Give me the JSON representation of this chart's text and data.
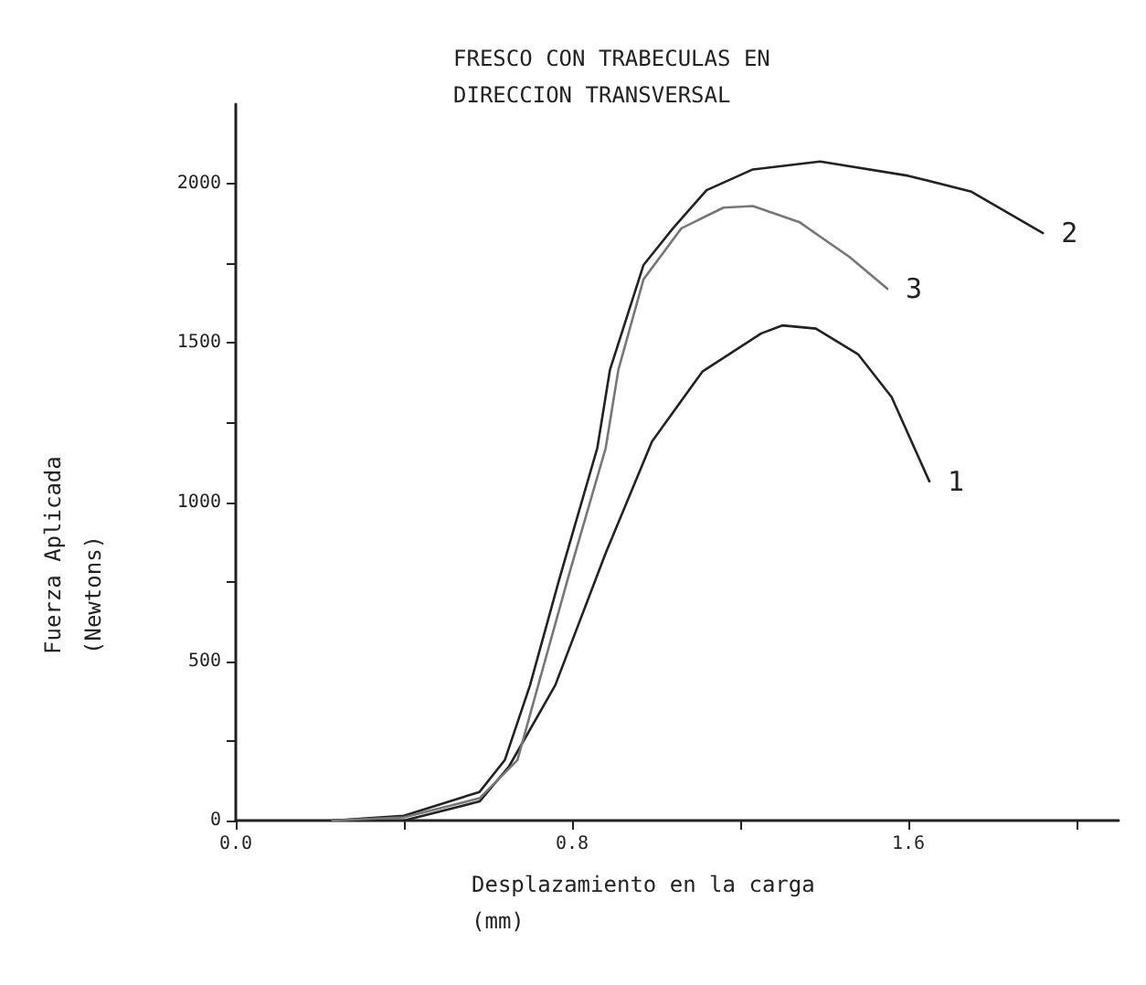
{
  "chart_data": {
    "type": "line",
    "title": "FRESCO CON TRABECULAS EN DIRECCION TRANSVERSAL",
    "xlabel": "Desplazamiento en la carga (mm)",
    "ylabel": "Fuerza Aplicada (Newtons)",
    "xlim": [
      0,
      2.1
    ],
    "xticks": [
      {
        "value": 0,
        "label": "0.0"
      },
      {
        "value": 0.4,
        "label": null
      },
      0.8,
      {
        "value": 1.2,
        "label": null
      },
      1.6,
      {
        "value": 2.0,
        "label": null
      }
    ],
    "ylim": [
      0,
      2250
    ],
    "yticks": [
      0,
      {
        "value": 250,
        "label": null
      },
      500,
      {
        "value": 750,
        "label": null
      },
      1000,
      {
        "value": 1250,
        "label": null
      },
      1500,
      {
        "value": 1750,
        "label": null
      },
      2000
    ],
    "grid": false,
    "legend": false,
    "marker": "none",
    "line_style": "solid",
    "series": [
      {
        "name": "1",
        "color": "#222222",
        "x": [
          0.23,
          0.4,
          0.58,
          0.65,
          0.76,
          0.88,
          0.99,
          1.11,
          1.25,
          1.3,
          1.38,
          1.48,
          1.56,
          1.65
        ],
        "values": [
          0,
          0,
          60,
          170,
          425,
          840,
          1190,
          1410,
          1530,
          1555,
          1545,
          1465,
          1330,
          1065
        ]
      },
      {
        "name": "2",
        "color": "#222222",
        "x": [
          0.23,
          0.4,
          0.58,
          0.64,
          0.7,
          0.77,
          0.86,
          0.89,
          0.97,
          1.04,
          1.12,
          1.23,
          1.39,
          1.6,
          1.75,
          1.92
        ],
        "values": [
          0,
          15,
          90,
          190,
          425,
          760,
          1170,
          1415,
          1745,
          1860,
          1980,
          2045,
          2070,
          2025,
          1975,
          1845
        ]
      },
      {
        "name": "3",
        "color": "#777777",
        "x": [
          0.23,
          0.4,
          0.58,
          0.67,
          0.79,
          0.88,
          0.91,
          0.97,
          1.06,
          1.16,
          1.23,
          1.34,
          1.46,
          1.55
        ],
        "values": [
          0,
          10,
          70,
          190,
          760,
          1170,
          1415,
          1700,
          1860,
          1925,
          1930,
          1880,
          1770,
          1670
        ]
      }
    ]
  }
}
